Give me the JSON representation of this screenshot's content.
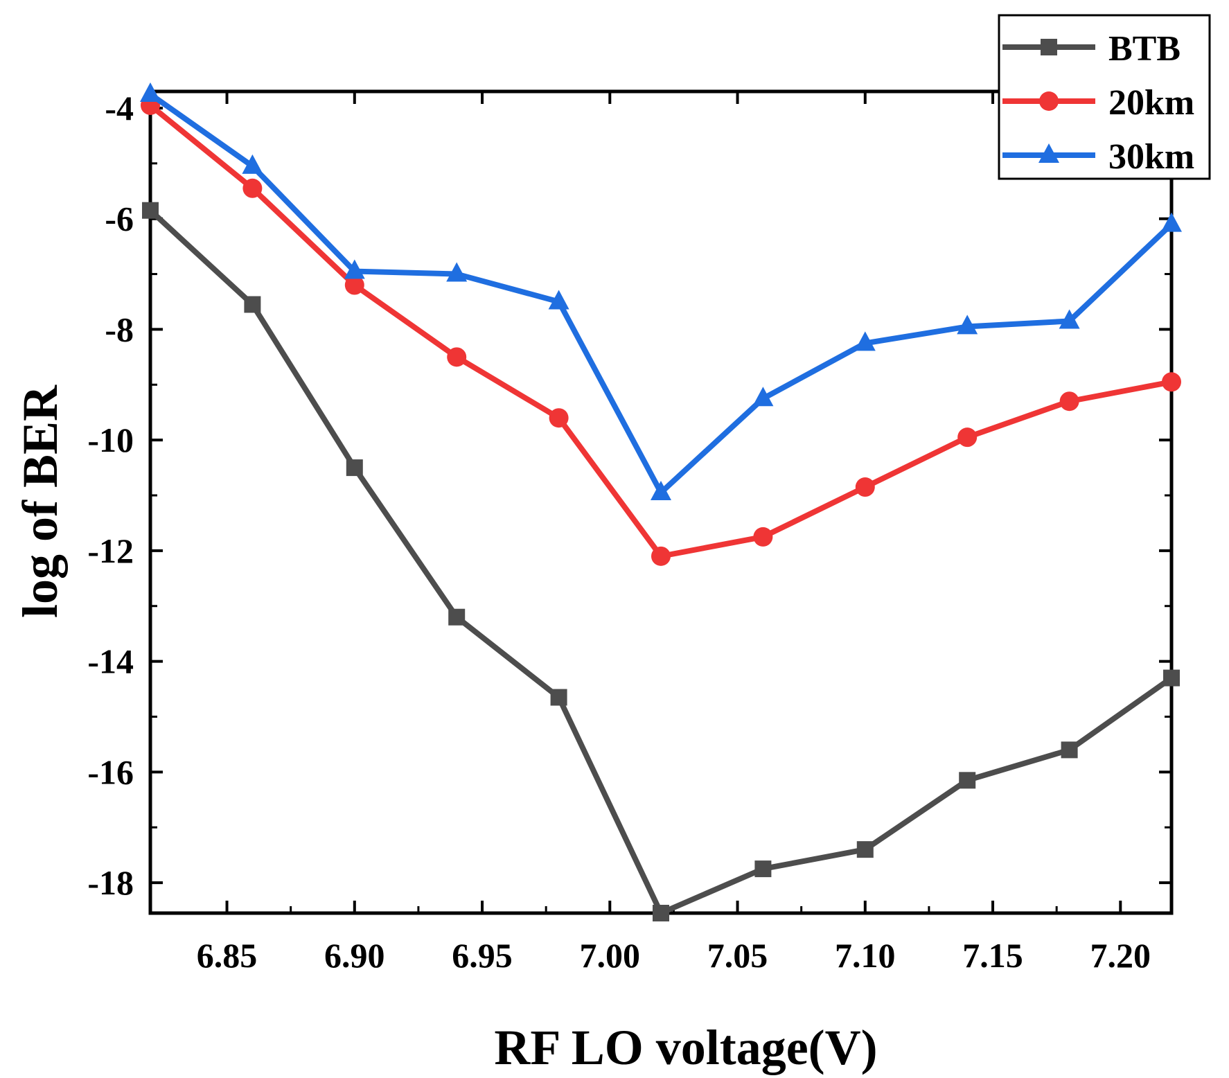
{
  "chart_data": {
    "type": "line",
    "title": "",
    "xlabel": "RF LO voltage(V)",
    "ylabel": "log of BER",
    "xlim": [
      6.82,
      7.22
    ],
    "ylim": [
      -18.55,
      -3.7
    ],
    "x_ticks": [
      6.85,
      6.9,
      6.95,
      7.0,
      7.05,
      7.1,
      7.15,
      7.2
    ],
    "x_tick_labels": [
      "6.85",
      "6.90",
      "6.95",
      "7.00",
      "7.05",
      "7.10",
      "7.15",
      "7.20"
    ],
    "y_ticks": [
      -4,
      -6,
      -8,
      -10,
      -12,
      -14,
      -16,
      -18
    ],
    "y_tick_labels": [
      "-4",
      "-6",
      "-8",
      "-10",
      "-12",
      "-14",
      "-16",
      "-18"
    ],
    "grid": false,
    "legend_position": "top-right",
    "x": [
      6.82,
      6.86,
      6.9,
      6.94,
      6.98,
      7.02,
      7.06,
      7.1,
      7.14,
      7.18,
      7.22
    ],
    "series": [
      {
        "name": "BTB",
        "color": "#4d4d4d",
        "marker": "square",
        "values": [
          -5.85,
          -7.55,
          -10.5,
          -13.2,
          -14.65,
          -18.55,
          -17.75,
          -17.4,
          -16.15,
          -15.6,
          -14.3
        ]
      },
      {
        "name": "20km",
        "color": "#ef3535",
        "marker": "circle",
        "values": [
          -3.95,
          -5.45,
          -7.2,
          -8.5,
          -9.6,
          -12.1,
          -11.75,
          -10.85,
          -9.95,
          -9.3,
          -8.95
        ]
      },
      {
        "name": "30km",
        "color": "#1f6ee0",
        "marker": "triangle",
        "values": [
          -3.75,
          -5.05,
          -6.95,
          -7.0,
          -7.5,
          -10.95,
          -9.25,
          -8.25,
          -7.95,
          -7.85,
          -6.1
        ]
      }
    ]
  }
}
